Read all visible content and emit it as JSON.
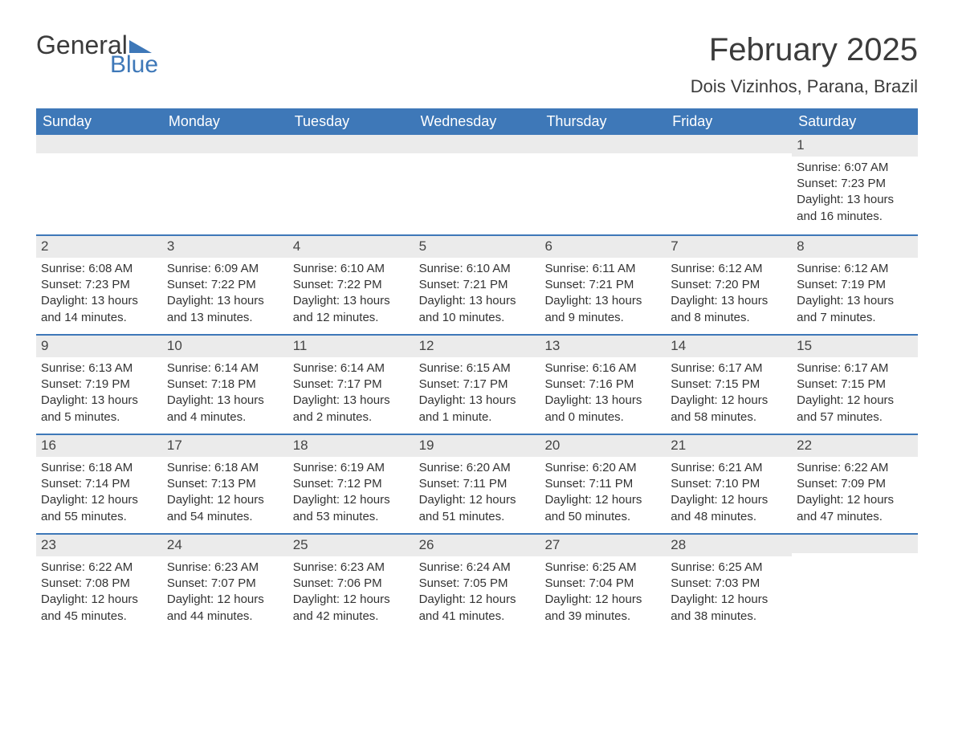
{
  "brand": {
    "word1": "General",
    "word2": "Blue",
    "accent_color": "#3e78b8"
  },
  "title": "February 2025",
  "location": "Dois Vizinhos, Parana, Brazil",
  "colors": {
    "header_bg": "#3e78b8",
    "header_text": "#ffffff",
    "row_divider": "#3e78b8",
    "daynum_bg": "#ebebeb",
    "body_text": "#333333",
    "background": "#ffffff"
  },
  "typography": {
    "title_fontsize": 40,
    "location_fontsize": 22,
    "dayheader_fontsize": 18,
    "cell_fontsize": 15
  },
  "day_names": [
    "Sunday",
    "Monday",
    "Tuesday",
    "Wednesday",
    "Thursday",
    "Friday",
    "Saturday"
  ],
  "labels": {
    "sunrise": "Sunrise:",
    "sunset": "Sunset:",
    "daylight": "Daylight:"
  },
  "weeks": [
    [
      null,
      null,
      null,
      null,
      null,
      null,
      {
        "n": "1",
        "sunrise": "6:07 AM",
        "sunset": "7:23 PM",
        "daylight1": "13 hours",
        "daylight2": "and 16 minutes."
      }
    ],
    [
      {
        "n": "2",
        "sunrise": "6:08 AM",
        "sunset": "7:23 PM",
        "daylight1": "13 hours",
        "daylight2": "and 14 minutes."
      },
      {
        "n": "3",
        "sunrise": "6:09 AM",
        "sunset": "7:22 PM",
        "daylight1": "13 hours",
        "daylight2": "and 13 minutes."
      },
      {
        "n": "4",
        "sunrise": "6:10 AM",
        "sunset": "7:22 PM",
        "daylight1": "13 hours",
        "daylight2": "and 12 minutes."
      },
      {
        "n": "5",
        "sunrise": "6:10 AM",
        "sunset": "7:21 PM",
        "daylight1": "13 hours",
        "daylight2": "and 10 minutes."
      },
      {
        "n": "6",
        "sunrise": "6:11 AM",
        "sunset": "7:21 PM",
        "daylight1": "13 hours",
        "daylight2": "and 9 minutes."
      },
      {
        "n": "7",
        "sunrise": "6:12 AM",
        "sunset": "7:20 PM",
        "daylight1": "13 hours",
        "daylight2": "and 8 minutes."
      },
      {
        "n": "8",
        "sunrise": "6:12 AM",
        "sunset": "7:19 PM",
        "daylight1": "13 hours",
        "daylight2": "and 7 minutes."
      }
    ],
    [
      {
        "n": "9",
        "sunrise": "6:13 AM",
        "sunset": "7:19 PM",
        "daylight1": "13 hours",
        "daylight2": "and 5 minutes."
      },
      {
        "n": "10",
        "sunrise": "6:14 AM",
        "sunset": "7:18 PM",
        "daylight1": "13 hours",
        "daylight2": "and 4 minutes."
      },
      {
        "n": "11",
        "sunrise": "6:14 AM",
        "sunset": "7:17 PM",
        "daylight1": "13 hours",
        "daylight2": "and 2 minutes."
      },
      {
        "n": "12",
        "sunrise": "6:15 AM",
        "sunset": "7:17 PM",
        "daylight1": "13 hours",
        "daylight2": "and 1 minute."
      },
      {
        "n": "13",
        "sunrise": "6:16 AM",
        "sunset": "7:16 PM",
        "daylight1": "13 hours",
        "daylight2": "and 0 minutes."
      },
      {
        "n": "14",
        "sunrise": "6:17 AM",
        "sunset": "7:15 PM",
        "daylight1": "12 hours",
        "daylight2": "and 58 minutes."
      },
      {
        "n": "15",
        "sunrise": "6:17 AM",
        "sunset": "7:15 PM",
        "daylight1": "12 hours",
        "daylight2": "and 57 minutes."
      }
    ],
    [
      {
        "n": "16",
        "sunrise": "6:18 AM",
        "sunset": "7:14 PM",
        "daylight1": "12 hours",
        "daylight2": "and 55 minutes."
      },
      {
        "n": "17",
        "sunrise": "6:18 AM",
        "sunset": "7:13 PM",
        "daylight1": "12 hours",
        "daylight2": "and 54 minutes."
      },
      {
        "n": "18",
        "sunrise": "6:19 AM",
        "sunset": "7:12 PM",
        "daylight1": "12 hours",
        "daylight2": "and 53 minutes."
      },
      {
        "n": "19",
        "sunrise": "6:20 AM",
        "sunset": "7:11 PM",
        "daylight1": "12 hours",
        "daylight2": "and 51 minutes."
      },
      {
        "n": "20",
        "sunrise": "6:20 AM",
        "sunset": "7:11 PM",
        "daylight1": "12 hours",
        "daylight2": "and 50 minutes."
      },
      {
        "n": "21",
        "sunrise": "6:21 AM",
        "sunset": "7:10 PM",
        "daylight1": "12 hours",
        "daylight2": "and 48 minutes."
      },
      {
        "n": "22",
        "sunrise": "6:22 AM",
        "sunset": "7:09 PM",
        "daylight1": "12 hours",
        "daylight2": "and 47 minutes."
      }
    ],
    [
      {
        "n": "23",
        "sunrise": "6:22 AM",
        "sunset": "7:08 PM",
        "daylight1": "12 hours",
        "daylight2": "and 45 minutes."
      },
      {
        "n": "24",
        "sunrise": "6:23 AM",
        "sunset": "7:07 PM",
        "daylight1": "12 hours",
        "daylight2": "and 44 minutes."
      },
      {
        "n": "25",
        "sunrise": "6:23 AM",
        "sunset": "7:06 PM",
        "daylight1": "12 hours",
        "daylight2": "and 42 minutes."
      },
      {
        "n": "26",
        "sunrise": "6:24 AM",
        "sunset": "7:05 PM",
        "daylight1": "12 hours",
        "daylight2": "and 41 minutes."
      },
      {
        "n": "27",
        "sunrise": "6:25 AM",
        "sunset": "7:04 PM",
        "daylight1": "12 hours",
        "daylight2": "and 39 minutes."
      },
      {
        "n": "28",
        "sunrise": "6:25 AM",
        "sunset": "7:03 PM",
        "daylight1": "12 hours",
        "daylight2": "and 38 minutes."
      },
      null
    ]
  ]
}
